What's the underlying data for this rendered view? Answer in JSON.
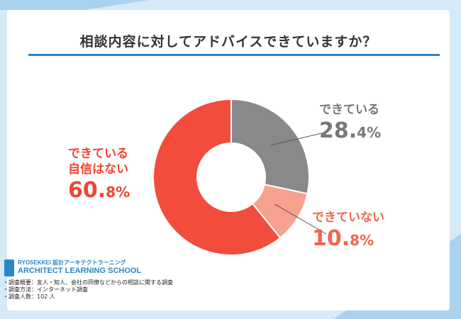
{
  "title": "相談内容に対してアドバイスできていますか？",
  "chart_data": {
    "type": "pie",
    "donut": true,
    "slices": [
      {
        "label": "できている",
        "value": 28.4,
        "color": "#898989"
      },
      {
        "label": "できていない",
        "value": 10.8,
        "color": "#f8a18f"
      },
      {
        "label": "できている自信はない",
        "value": 60.8,
        "color": "#f24c3d"
      }
    ],
    "label_lines": [
      {
        "text": "できている",
        "pct_main": "28.",
        "pct_dec": "4%"
      },
      {
        "text": "できていない",
        "pct_main": "10.",
        "pct_dec": "8%"
      },
      {
        "text_line1": "できている",
        "text_line2": "自信はない",
        "pct_main": "60.",
        "pct_dec": "8%"
      }
    ]
  },
  "logo": {
    "line1": "RYOSEKKEI 設計アーキテクトラーニング",
    "line2": "ARCHITECT LEARNING SCHOOL"
  },
  "notes": [
    "・調査概要：友人・知人、会社の同僚などからの相談に関する調査",
    "・調査方法：インターネット調査",
    "・調査人数：102 人"
  ]
}
